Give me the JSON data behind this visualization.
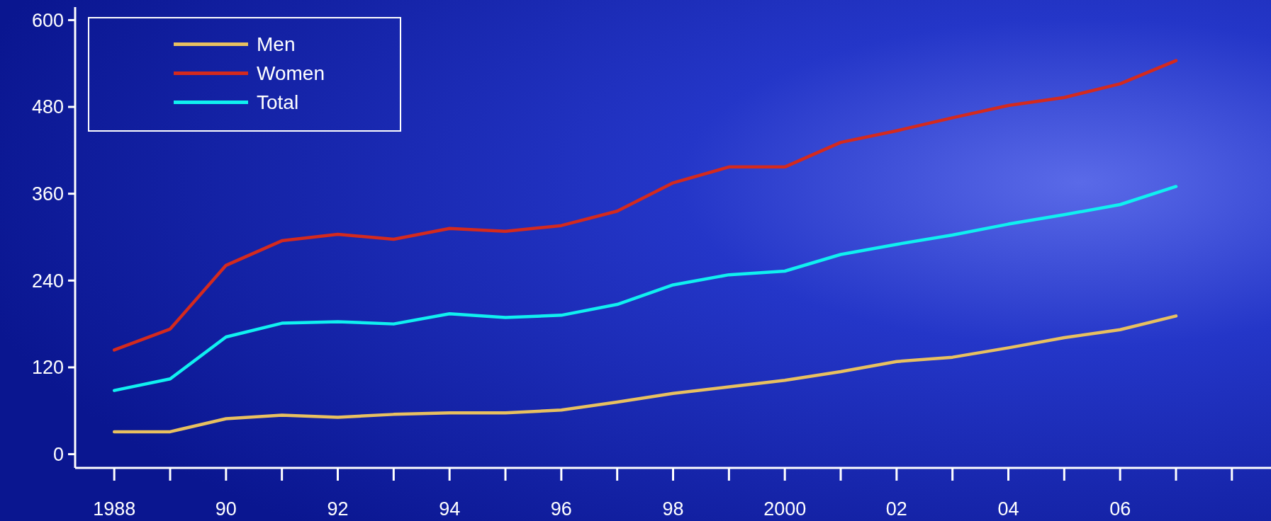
{
  "chart_data": {
    "type": "line",
    "x": [
      1988,
      1989,
      1990,
      1991,
      1992,
      1993,
      1994,
      1995,
      1996,
      1997,
      1998,
      1999,
      2000,
      2001,
      2002,
      2003,
      2004,
      2005,
      2006,
      2007
    ],
    "series": [
      {
        "name": "Men",
        "color": "#e8c060",
        "values": [
          31,
          31,
          49,
          54,
          51,
          55,
          57,
          57,
          61,
          72,
          84,
          93,
          102,
          114,
          128,
          134,
          147,
          161,
          172,
          191
        ]
      },
      {
        "name": "Women",
        "color": "#d42a1e",
        "values": [
          144,
          173,
          261,
          295,
          304,
          297,
          312,
          308,
          316,
          336,
          375,
          397,
          397,
          431,
          447,
          465,
          482,
          493,
          512,
          544
        ]
      },
      {
        "name": "Total",
        "color": "#10f0f0",
        "values": [
          88,
          104,
          162,
          181,
          183,
          180,
          194,
          189,
          192,
          207,
          234,
          248,
          253,
          276,
          290,
          303,
          318,
          331,
          345,
          370
        ]
      }
    ],
    "xlim": [
      1987.3,
      2008.7
    ],
    "ylim": [
      -19,
      618
    ],
    "xticks": [
      {
        "value": 1988,
        "label": "1988"
      },
      {
        "value": 1990,
        "label": "90"
      },
      {
        "value": 1992,
        "label": "92"
      },
      {
        "value": 1994,
        "label": "94"
      },
      {
        "value": 1996,
        "label": "96"
      },
      {
        "value": 1998,
        "label": "98"
      },
      {
        "value": 2000,
        "label": "2000"
      },
      {
        "value": 2002,
        "label": "02"
      },
      {
        "value": 2004,
        "label": "04"
      },
      {
        "value": 2006,
        "label": "06"
      }
    ],
    "yticks": [
      0,
      120,
      240,
      360,
      480,
      600
    ],
    "grid": false,
    "legend": "top left",
    "marker": "none",
    "line_style": "solid"
  }
}
